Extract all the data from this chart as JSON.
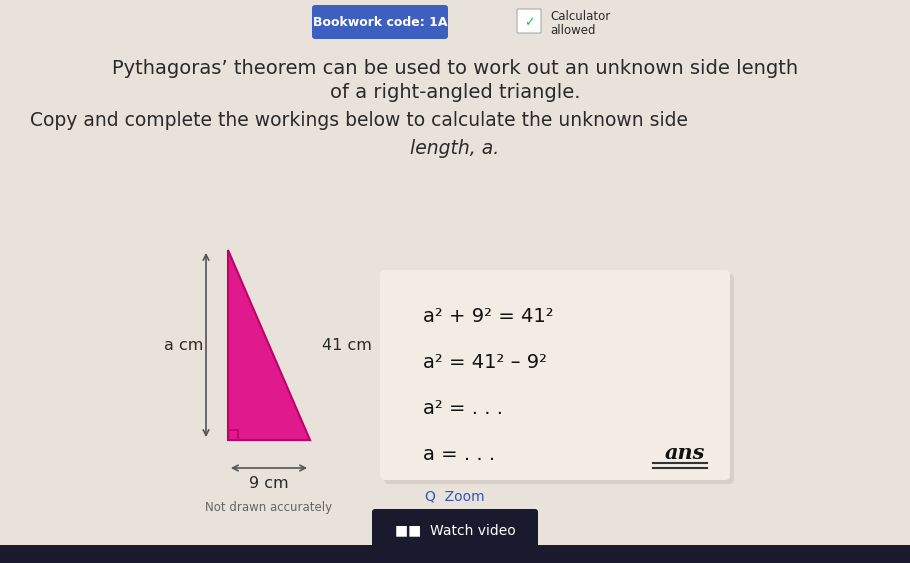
{
  "bg_color": "#e8e2da",
  "title_line1": "Pythagoras’ theorem can be used to work out an unknown side length",
  "title_line2": "of a right-angled triangle.",
  "subtitle_line1": "Copy and complete the workings below to calculate the unknown side",
  "subtitle_line2": "length, a.",
  "bookwork_label": "Bookwork code: 1A",
  "bookwork_bg": "#3d5fc0",
  "triangle_color": "#e0198c",
  "triangle_edge": "#c0006a",
  "label_a": "a cm",
  "label_41": "41 cm",
  "label_9": "9 cm",
  "not_drawn": "Not drawn accurately",
  "eq1": "a² + 9² = 41²",
  "eq2": "a² = 41² – 9²",
  "eq3": "a² = . . .",
  "eq4": "a = . . .",
  "ans_label": "ans",
  "zoom_label": "Q  Zoom",
  "watch_label": "■■  Watch video",
  "eq_box_color": "#f2ece4",
  "eq_box_shadow": "#d8d0c8",
  "bottom_bar_color": "#1a1a2e",
  "watch_bg": "#1a1a2e",
  "watch_text_color": "#ffffff",
  "text_color": "#2a2a2a",
  "arrow_color": "#555555",
  "zoom_color": "#3355bb"
}
